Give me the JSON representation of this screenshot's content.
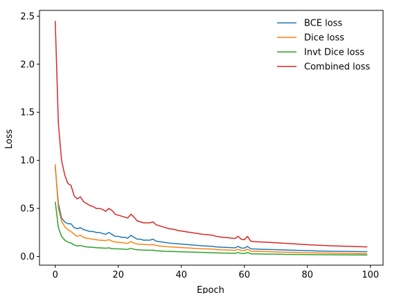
{
  "chart_data": {
    "type": "line",
    "title": "",
    "xlabel": "Epoch",
    "ylabel": "Loss",
    "xlim": [
      -5,
      104
    ],
    "ylim": [
      -0.09,
      2.56
    ],
    "xticks": [
      0,
      20,
      40,
      60,
      80,
      100
    ],
    "yticks": [
      0.0,
      0.5,
      1.0,
      1.5,
      2.0,
      2.5
    ],
    "xtick_labels": [
      "0",
      "20",
      "40",
      "60",
      "80",
      "100"
    ],
    "ytick_labels": [
      "0.0",
      "0.5",
      "1.0",
      "1.5",
      "2.0",
      "2.5"
    ],
    "grid": false,
    "legend_position": "top-right",
    "x": [
      0,
      1,
      2,
      3,
      4,
      5,
      6,
      7,
      8,
      9,
      10,
      11,
      12,
      13,
      14,
      15,
      16,
      17,
      18,
      19,
      20,
      21,
      22,
      23,
      24,
      25,
      26,
      27,
      28,
      29,
      30,
      31,
      32,
      33,
      34,
      35,
      36,
      37,
      38,
      39,
      40,
      41,
      42,
      43,
      44,
      45,
      46,
      47,
      48,
      49,
      50,
      51,
      52,
      53,
      54,
      55,
      56,
      57,
      58,
      59,
      60,
      61,
      62,
      63,
      64,
      65,
      66,
      67,
      68,
      69,
      70,
      71,
      72,
      73,
      74,
      75,
      76,
      77,
      78,
      79,
      80,
      81,
      82,
      83,
      84,
      85,
      86,
      87,
      88,
      89,
      90,
      91,
      92,
      93,
      94,
      95,
      96,
      97,
      98,
      99
    ],
    "series": [
      {
        "name": "BCE loss",
        "color": "#1f77b4",
        "values": [
          0.93,
          0.55,
          0.4,
          0.36,
          0.34,
          0.34,
          0.3,
          0.29,
          0.3,
          0.28,
          0.27,
          0.26,
          0.26,
          0.25,
          0.25,
          0.24,
          0.23,
          0.25,
          0.23,
          0.21,
          0.21,
          0.2,
          0.2,
          0.19,
          0.22,
          0.2,
          0.18,
          0.18,
          0.17,
          0.17,
          0.17,
          0.18,
          0.16,
          0.155,
          0.15,
          0.145,
          0.14,
          0.137,
          0.135,
          0.132,
          0.13,
          0.127,
          0.124,
          0.121,
          0.118,
          0.116,
          0.113,
          0.111,
          0.109,
          0.107,
          0.105,
          0.1,
          0.098,
          0.096,
          0.095,
          0.094,
          0.092,
          0.09,
          0.105,
          0.088,
          0.087,
          0.105,
          0.08,
          0.078,
          0.077,
          0.076,
          0.075,
          0.074,
          0.073,
          0.072,
          0.071,
          0.07,
          0.069,
          0.068,
          0.067,
          0.066,
          0.065,
          0.064,
          0.063,
          0.062,
          0.061,
          0.06,
          0.059,
          0.058,
          0.057,
          0.057,
          0.056,
          0.055,
          0.055,
          0.054,
          0.054,
          0.053,
          0.053,
          0.052,
          0.052,
          0.051,
          0.051,
          0.05,
          0.05,
          0.05
        ]
      },
      {
        "name": "Dice loss",
        "color": "#ff7f0e",
        "values": [
          0.96,
          0.5,
          0.37,
          0.31,
          0.28,
          0.26,
          0.23,
          0.21,
          0.22,
          0.2,
          0.19,
          0.185,
          0.18,
          0.175,
          0.17,
          0.168,
          0.165,
          0.175,
          0.16,
          0.15,
          0.148,
          0.145,
          0.14,
          0.138,
          0.155,
          0.14,
          0.13,
          0.128,
          0.125,
          0.123,
          0.122,
          0.125,
          0.115,
          0.11,
          0.107,
          0.104,
          0.101,
          0.099,
          0.097,
          0.095,
          0.093,
          0.091,
          0.089,
          0.087,
          0.085,
          0.083,
          0.081,
          0.08,
          0.079,
          0.078,
          0.077,
          0.072,
          0.07,
          0.069,
          0.068,
          0.067,
          0.065,
          0.064,
          0.075,
          0.062,
          0.061,
          0.075,
          0.056,
          0.055,
          0.054,
          0.053,
          0.052,
          0.051,
          0.05,
          0.049,
          0.048,
          0.047,
          0.046,
          0.045,
          0.044,
          0.043,
          0.042,
          0.041,
          0.04,
          0.039,
          0.039,
          0.038,
          0.038,
          0.037,
          0.037,
          0.036,
          0.036,
          0.035,
          0.035,
          0.034,
          0.034,
          0.033,
          0.033,
          0.032,
          0.032,
          0.031,
          0.031,
          0.03,
          0.03,
          0.03
        ]
      },
      {
        "name": "Invt Dice loss",
        "color": "#2ca02c",
        "values": [
          0.57,
          0.3,
          0.21,
          0.17,
          0.15,
          0.14,
          0.12,
          0.11,
          0.115,
          0.105,
          0.1,
          0.097,
          0.095,
          0.092,
          0.09,
          0.088,
          0.086,
          0.09,
          0.082,
          0.08,
          0.079,
          0.078,
          0.076,
          0.075,
          0.085,
          0.075,
          0.07,
          0.068,
          0.067,
          0.066,
          0.065,
          0.066,
          0.06,
          0.058,
          0.056,
          0.054,
          0.053,
          0.052,
          0.051,
          0.05,
          0.049,
          0.048,
          0.047,
          0.046,
          0.045,
          0.044,
          0.043,
          0.042,
          0.041,
          0.04,
          0.04,
          0.038,
          0.037,
          0.036,
          0.035,
          0.035,
          0.034,
          0.033,
          0.042,
          0.032,
          0.031,
          0.042,
          0.028,
          0.027,
          0.027,
          0.026,
          0.026,
          0.025,
          0.025,
          0.024,
          0.024,
          0.023,
          0.023,
          0.022,
          0.022,
          0.022,
          0.021,
          0.021,
          0.021,
          0.02,
          0.02,
          0.02,
          0.019,
          0.019,
          0.019,
          0.018,
          0.018,
          0.018,
          0.018,
          0.017,
          0.017,
          0.017,
          0.017,
          0.016,
          0.016,
          0.016,
          0.016,
          0.016,
          0.015,
          0.015
        ]
      },
      {
        "name": "Combined loss",
        "color": "#d62728",
        "values": [
          2.45,
          1.38,
          1.0,
          0.85,
          0.76,
          0.74,
          0.63,
          0.6,
          0.62,
          0.57,
          0.55,
          0.53,
          0.52,
          0.5,
          0.5,
          0.49,
          0.47,
          0.5,
          0.48,
          0.44,
          0.43,
          0.42,
          0.41,
          0.4,
          0.44,
          0.41,
          0.37,
          0.36,
          0.35,
          0.35,
          0.35,
          0.36,
          0.33,
          0.32,
          0.31,
          0.3,
          0.29,
          0.285,
          0.28,
          0.27,
          0.265,
          0.26,
          0.255,
          0.25,
          0.245,
          0.24,
          0.235,
          0.23,
          0.228,
          0.225,
          0.22,
          0.21,
          0.205,
          0.2,
          0.198,
          0.195,
          0.19,
          0.187,
          0.21,
          0.18,
          0.175,
          0.21,
          0.16,
          0.155,
          0.153,
          0.151,
          0.15,
          0.149,
          0.147,
          0.145,
          0.143,
          0.141,
          0.139,
          0.137,
          0.135,
          0.133,
          0.131,
          0.129,
          0.127,
          0.125,
          0.123,
          0.121,
          0.12,
          0.118,
          0.117,
          0.115,
          0.114,
          0.112,
          0.111,
          0.11,
          0.109,
          0.108,
          0.107,
          0.106,
          0.105,
          0.104,
          0.103,
          0.102,
          0.101,
          0.1
        ]
      }
    ]
  }
}
